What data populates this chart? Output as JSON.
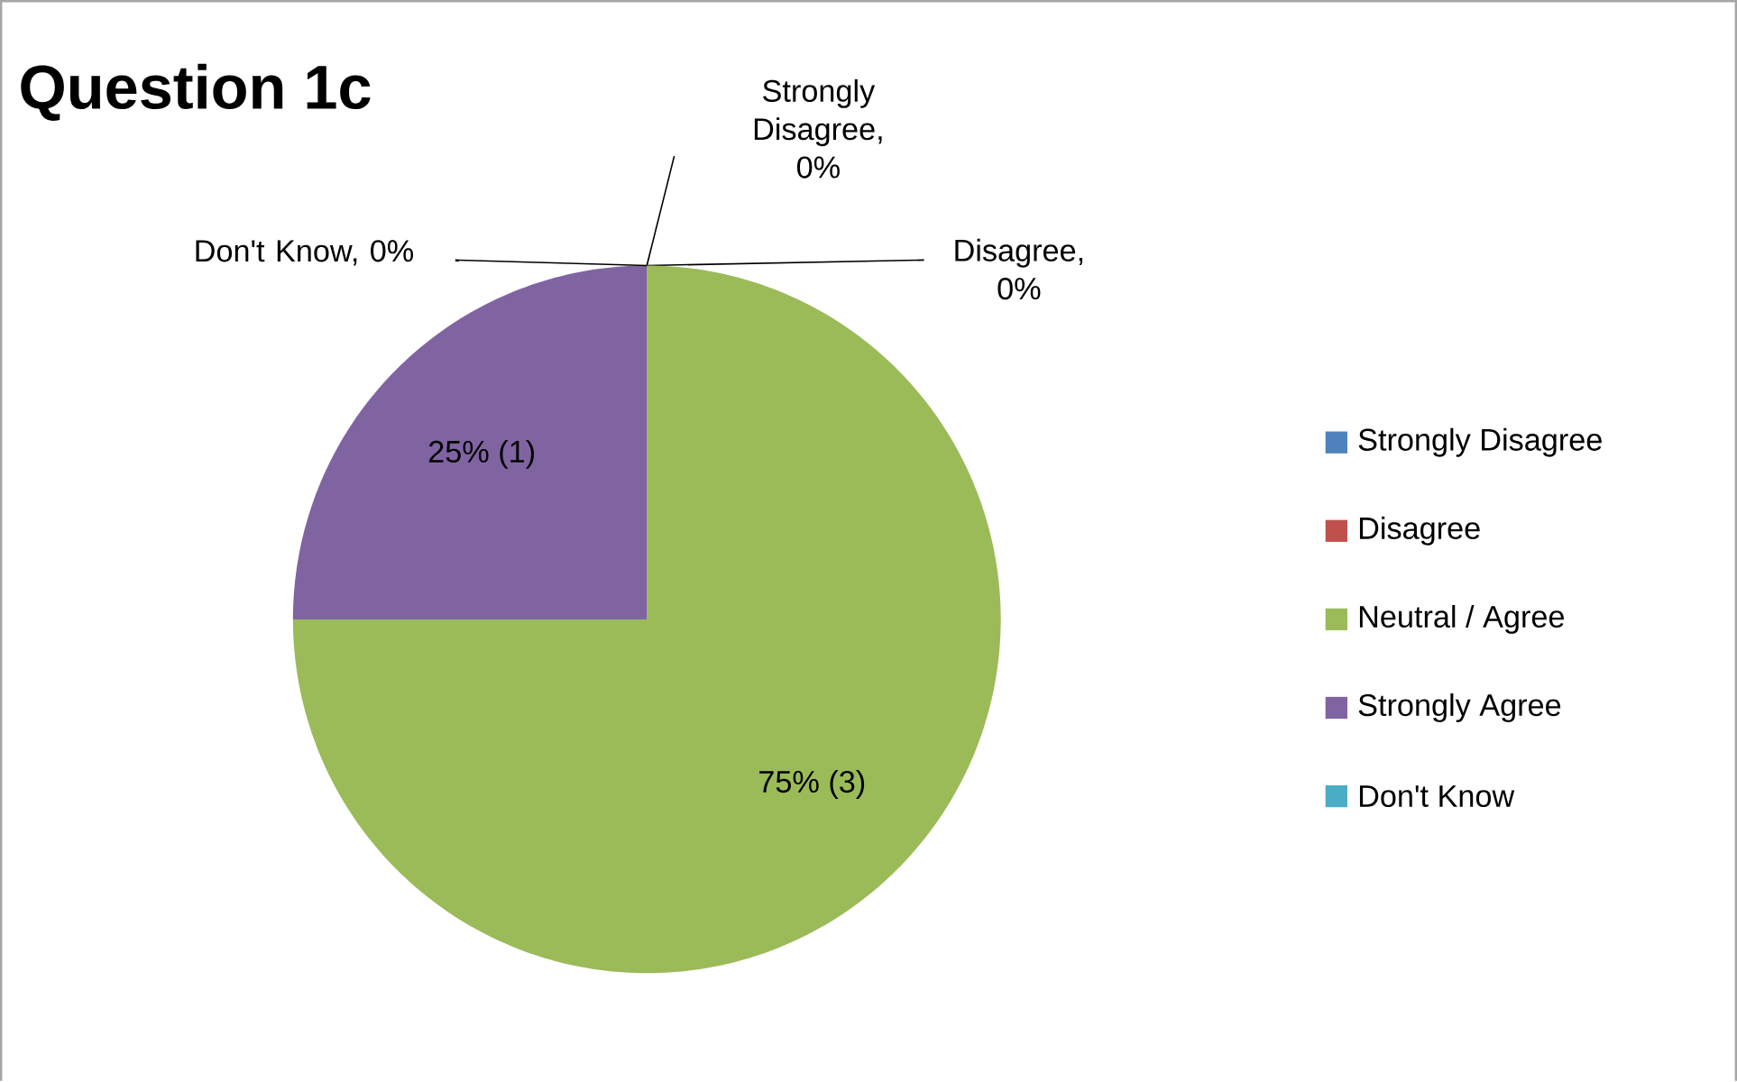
{
  "chart_data": {
    "type": "pie",
    "title": "Question 1c",
    "categories": [
      "Strongly Disagree",
      "Disagree",
      "Neutral / Agree",
      "Strongly Agree",
      "Don't Know"
    ],
    "values": [
      0,
      0,
      75,
      25,
      0
    ],
    "colors": [
      "#4f81bd",
      "#c0504d",
      "#9bbb59",
      "#8064a2",
      "#4bacc6"
    ],
    "value_labels": [
      "Strongly Disagree, 0%",
      "Disagree, 0%",
      "75% (3)",
      "25% (1)",
      "Don't Know, 0%"
    ],
    "legend": "right"
  }
}
